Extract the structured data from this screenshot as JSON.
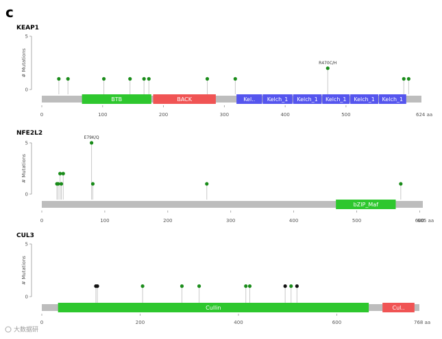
{
  "panel_letter": "c",
  "watermark": "大数据研",
  "colors": {
    "backbone": "#bdbdbd",
    "stem": "#c9c9c9",
    "axis": "#999999",
    "mutation_green": "#1a8c1a",
    "mutation_black": "#111111",
    "domain_green": "#2ec72e",
    "domain_red": "#f05454",
    "domain_blue": "#5555ee"
  },
  "chart_data": [
    {
      "type": "lollipop",
      "gene": "KEAP1",
      "length_label": "624 aa",
      "length": 624,
      "ylabel": "# Mutations",
      "ylim": [
        0,
        5
      ],
      "yticks": [
        0,
        5
      ],
      "xticks": [
        0,
        100,
        200,
        300,
        400,
        500
      ],
      "mutations": [
        {
          "x": 28,
          "y": 1,
          "color": "green"
        },
        {
          "x": 43,
          "y": 1,
          "color": "green"
        },
        {
          "x": 102,
          "y": 1,
          "color": "green"
        },
        {
          "x": 145,
          "y": 1,
          "color": "green"
        },
        {
          "x": 168,
          "y": 1,
          "color": "green"
        },
        {
          "x": 176,
          "y": 1,
          "color": "green"
        },
        {
          "x": 272,
          "y": 1,
          "color": "green"
        },
        {
          "x": 318,
          "y": 1,
          "color": "green"
        },
        {
          "x": 470,
          "y": 2,
          "color": "green",
          "label": "R470C/H"
        },
        {
          "x": 595,
          "y": 1,
          "color": "green"
        },
        {
          "x": 603,
          "y": 1,
          "color": "green"
        }
      ],
      "domains": [
        {
          "name": "BTB",
          "start": 66,
          "end": 180,
          "color": "green"
        },
        {
          "name": "BACK",
          "start": 183,
          "end": 286,
          "color": "red"
        },
        {
          "name": "Kel..",
          "start": 320,
          "end": 362,
          "color": "blue"
        },
        {
          "name": "Kelch_1",
          "start": 363,
          "end": 412,
          "color": "blue"
        },
        {
          "name": "Kelch_1",
          "start": 413,
          "end": 460,
          "color": "blue"
        },
        {
          "name": "Kelch_1",
          "start": 461,
          "end": 506,
          "color": "blue"
        },
        {
          "name": "Kelch_1",
          "start": 507,
          "end": 553,
          "color": "blue"
        },
        {
          "name": "Kelch_1",
          "start": 554,
          "end": 599,
          "color": "blue"
        }
      ]
    },
    {
      "type": "lollipop",
      "gene": "NFE2L2",
      "length_label": "605 aa",
      "length": 605,
      "ylabel": "# Mutations",
      "ylim": [
        0,
        5
      ],
      "yticks": [
        0,
        5
      ],
      "xticks": [
        0,
        100,
        200,
        300,
        400,
        500,
        600
      ],
      "mutations": [
        {
          "x": 24,
          "y": 1,
          "color": "green"
        },
        {
          "x": 26,
          "y": 1,
          "color": "green"
        },
        {
          "x": 29,
          "y": 2,
          "color": "green"
        },
        {
          "x": 31,
          "y": 1,
          "color": "green"
        },
        {
          "x": 34,
          "y": 2,
          "color": "green"
        },
        {
          "x": 79,
          "y": 5,
          "color": "green",
          "label": "E79K/Q"
        },
        {
          "x": 81,
          "y": 1,
          "color": "green"
        },
        {
          "x": 262,
          "y": 1,
          "color": "green"
        },
        {
          "x": 570,
          "y": 1,
          "color": "green"
        }
      ],
      "domains": [
        {
          "name": "bZIP_Maf",
          "start": 467,
          "end": 562,
          "color": "green"
        }
      ]
    },
    {
      "type": "lollipop",
      "gene": "CUL3",
      "length_label": "768 aa",
      "length": 768,
      "ylabel": "# Mutations",
      "ylim": [
        0,
        5
      ],
      "yticks": [
        0,
        5
      ],
      "xticks": [
        0,
        200,
        400,
        600
      ],
      "mutations": [
        {
          "x": 110,
          "y": 1,
          "color": "black"
        },
        {
          "x": 113,
          "y": 1,
          "color": "black"
        },
        {
          "x": 205,
          "y": 1,
          "color": "green"
        },
        {
          "x": 285,
          "y": 1,
          "color": "green"
        },
        {
          "x": 320,
          "y": 1,
          "color": "green"
        },
        {
          "x": 415,
          "y": 1,
          "color": "green"
        },
        {
          "x": 423,
          "y": 1,
          "color": "green"
        },
        {
          "x": 495,
          "y": 1,
          "color": "black"
        },
        {
          "x": 507,
          "y": 1,
          "color": "green"
        },
        {
          "x": 519,
          "y": 1,
          "color": "black"
        }
      ],
      "domains": [
        {
          "name": "Cullin",
          "start": 33,
          "end": 665,
          "color": "green"
        },
        {
          "name": "Cul..",
          "start": 693,
          "end": 758,
          "color": "red"
        }
      ]
    }
  ]
}
